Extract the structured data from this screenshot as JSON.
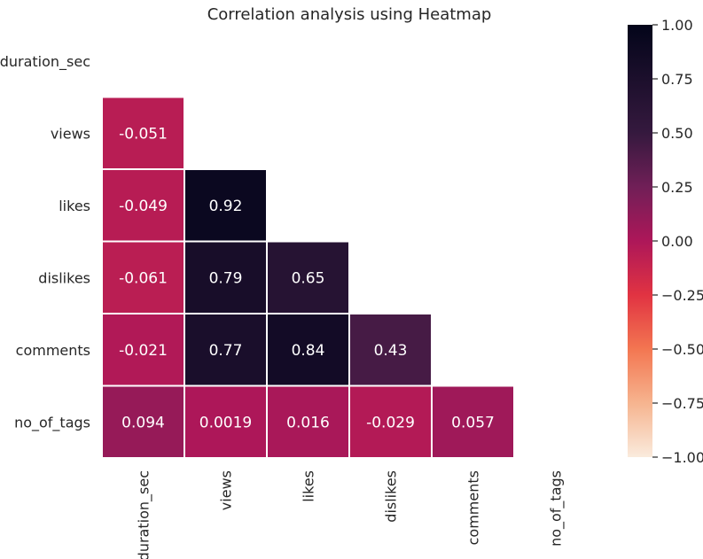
{
  "chart_data": {
    "type": "heatmap",
    "title": "Correlation analysis using Heatmap",
    "variables": [
      "duration_sec",
      "views",
      "likes",
      "dislikes",
      "comments",
      "no_of_tags"
    ],
    "mask": "upper-triangle-including-diagonal",
    "cells": [
      {
        "row": 1,
        "col": 0,
        "value": -0.051,
        "label": "-0.051"
      },
      {
        "row": 2,
        "col": 0,
        "value": -0.049,
        "label": "-0.049"
      },
      {
        "row": 2,
        "col": 1,
        "value": 0.92,
        "label": "0.92"
      },
      {
        "row": 3,
        "col": 0,
        "value": -0.061,
        "label": "-0.061"
      },
      {
        "row": 3,
        "col": 1,
        "value": 0.79,
        "label": "0.79"
      },
      {
        "row": 3,
        "col": 2,
        "value": 0.65,
        "label": "0.65"
      },
      {
        "row": 4,
        "col": 0,
        "value": -0.021,
        "label": "-0.021"
      },
      {
        "row": 4,
        "col": 1,
        "value": 0.77,
        "label": "0.77"
      },
      {
        "row": 4,
        "col": 2,
        "value": 0.84,
        "label": "0.84"
      },
      {
        "row": 4,
        "col": 3,
        "value": 0.43,
        "label": "0.43"
      },
      {
        "row": 5,
        "col": 0,
        "value": 0.094,
        "label": "0.094"
      },
      {
        "row": 5,
        "col": 1,
        "value": 0.0019,
        "label": "0.0019"
      },
      {
        "row": 5,
        "col": 2,
        "value": 0.016,
        "label": "0.016"
      },
      {
        "row": 5,
        "col": 3,
        "value": -0.029,
        "label": "-0.029"
      },
      {
        "row": 5,
        "col": 4,
        "value": 0.057,
        "label": "0.057"
      }
    ],
    "colorbar": {
      "range": [
        -1.0,
        1.0
      ],
      "ticks": [
        1.0,
        0.75,
        0.5,
        0.25,
        0.0,
        -0.25,
        -0.5,
        -0.75,
        -1.0
      ],
      "tick_labels": [
        "1.00",
        "0.75",
        "0.50",
        "0.25",
        "0.00",
        "−0.25",
        "−0.50",
        "−0.75",
        "−1.00"
      ],
      "colormap": "rocket_r",
      "stops": [
        {
          "value": -1.0,
          "color": "#faebdd"
        },
        {
          "value": -0.75,
          "color": "#f6b48f"
        },
        {
          "value": -0.5,
          "color": "#f37651"
        },
        {
          "value": -0.25,
          "color": "#e13342"
        },
        {
          "value": 0.0,
          "color": "#ad1759"
        },
        {
          "value": 0.25,
          "color": "#701f57"
        },
        {
          "value": 0.5,
          "color": "#35193e"
        },
        {
          "value": 1.0,
          "color": "#03051a"
        }
      ]
    },
    "cell_border_color": "#ffffff",
    "annotation_color": "#ffffff"
  }
}
